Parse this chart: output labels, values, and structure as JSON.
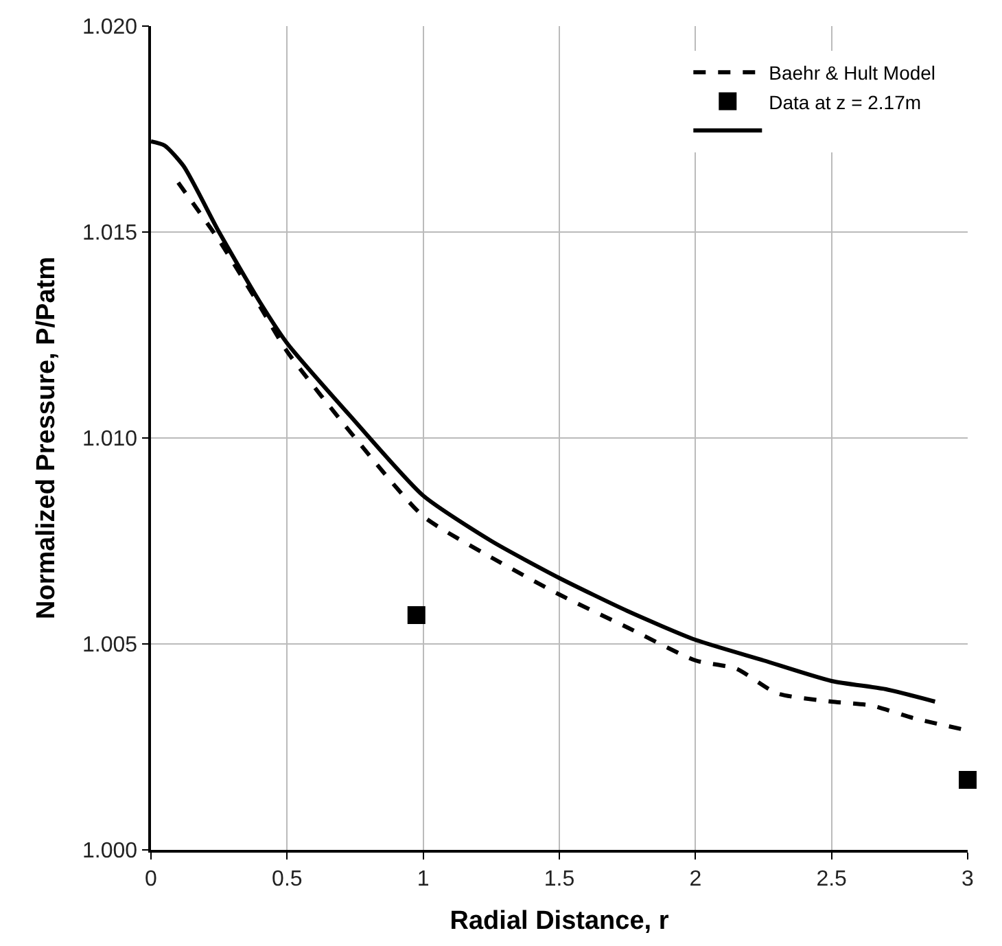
{
  "chart_data": {
    "type": "line",
    "xlabel": "Radial Distance, r",
    "ylabel": "Normalized Pressure, P/Patm",
    "xlim": [
      0,
      3
    ],
    "xticks": [
      0,
      0.5,
      1,
      1.5,
      2,
      2.5,
      3
    ],
    "ylim": [
      1.0,
      1.02
    ],
    "yticks": [
      {
        "value": 1.0,
        "label": "1.000"
      },
      {
        "value": 1.005,
        "label": "1.005"
      },
      {
        "value": 1.01,
        "label": "1.010"
      },
      {
        "value": 1.015,
        "label": "1.015"
      },
      {
        "value": 1.02,
        "label": "1.020"
      }
    ],
    "grid": true,
    "legend": "top right",
    "series": [
      {
        "name": "Baehr & Hult Model",
        "line_style": "dashed",
        "color": "#000000",
        "x": [
          0.1,
          0.25,
          0.4,
          0.5,
          0.75,
          1.0,
          1.25,
          1.5,
          1.75,
          2.0,
          2.15,
          2.3,
          2.5,
          2.65,
          2.8,
          3.0
        ],
        "values": [
          1.0162,
          1.0148,
          1.0132,
          1.0121,
          1.01,
          1.0081,
          1.0071,
          1.0062,
          1.0054,
          1.0046,
          1.0044,
          1.0038,
          1.0036,
          1.0035,
          1.0032,
          1.0029
        ]
      },
      {
        "name": "Data at z = 2.17m",
        "type": "scatter",
        "marker": "square",
        "color": "#000000",
        "x": [
          0.975,
          3.0
        ],
        "values": [
          1.0057,
          1.0017
        ]
      },
      {
        "line_style": "solid",
        "color": "#000000",
        "x": [
          0,
          0.05,
          0.12,
          0.25,
          0.4,
          0.5,
          0.75,
          1.0,
          1.25,
          1.5,
          1.75,
          2.0,
          2.25,
          2.5,
          2.7,
          2.88
        ],
        "values": [
          1.0172,
          1.0171,
          1.0166,
          1.015,
          1.0133,
          1.0123,
          1.0104,
          1.0086,
          1.0075,
          1.0066,
          1.0058,
          1.0051,
          1.0046,
          1.0041,
          1.0039,
          1.0036
        ]
      }
    ]
  }
}
